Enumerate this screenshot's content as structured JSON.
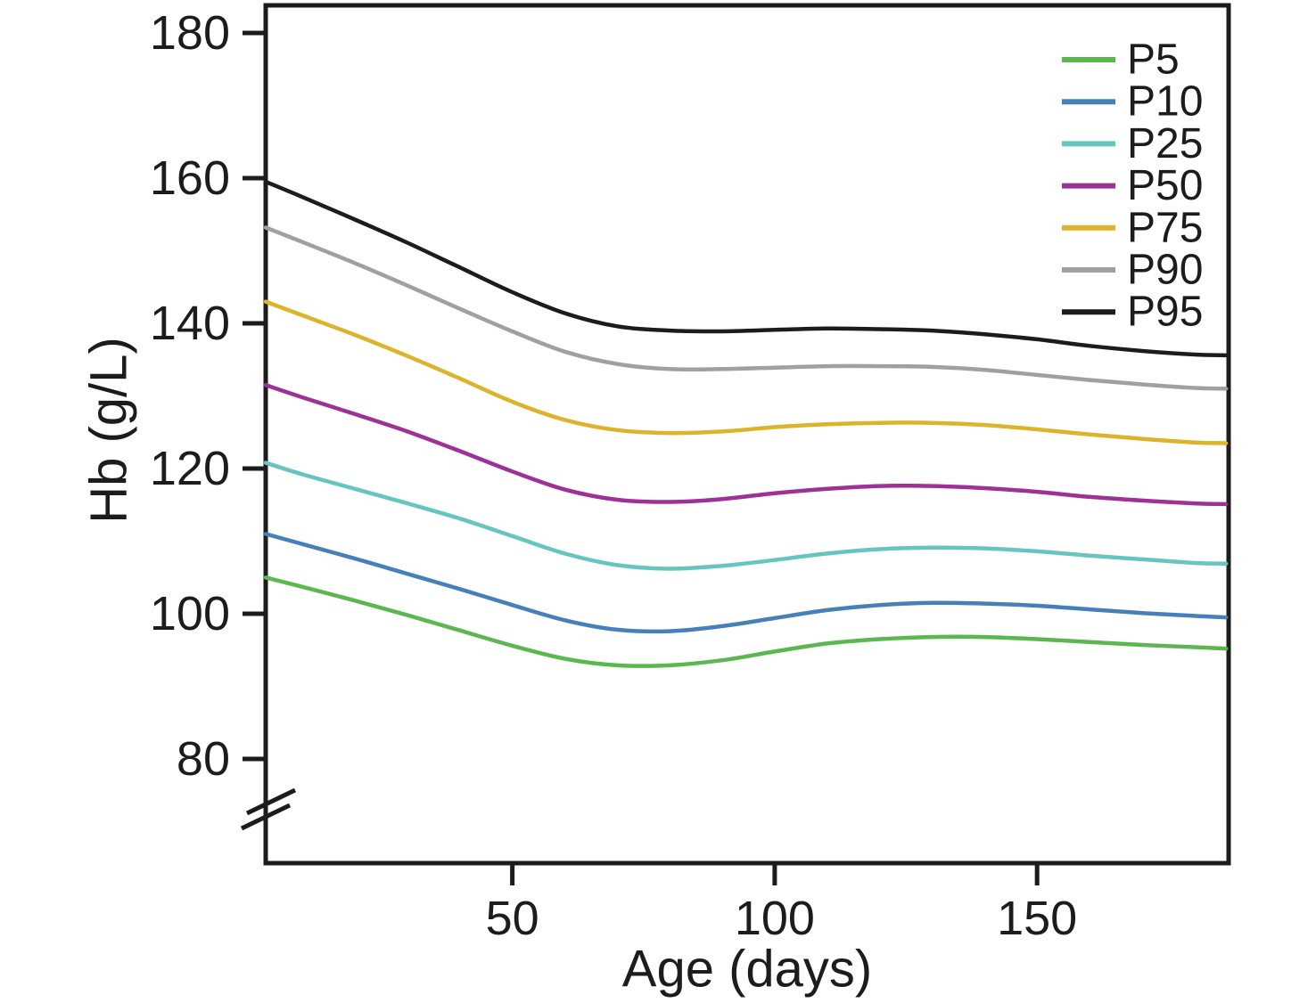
{
  "chart_data": {
    "type": "line",
    "title": "",
    "xlabel": "Age (days)",
    "ylabel": "Hb (g/L)",
    "x_ticks": [
      50,
      100,
      150
    ],
    "y_ticks": [
      180,
      160,
      140,
      120,
      100,
      80
    ],
    "xlim": [
      3,
      186.5
    ],
    "ylim_visible": [
      80,
      180
    ],
    "axis_break_bottom_left": true,
    "grid": false,
    "legend_position": "upper right",
    "legend_entries": [
      "P5",
      "P10",
      "P25",
      "P50",
      "P75",
      "P90",
      "P95"
    ],
    "x": [
      3,
      10,
      20,
      30,
      40,
      50,
      60,
      70,
      80,
      90,
      100,
      110,
      120,
      130,
      140,
      150,
      160,
      170,
      180,
      186
    ],
    "series": [
      {
        "name": "P5",
        "color": "#5cb751",
        "values": [
          105.0,
          103.7,
          101.8,
          99.8,
          97.7,
          95.6,
          93.8,
          92.9,
          92.9,
          93.6,
          94.8,
          95.9,
          96.5,
          96.8,
          96.8,
          96.5,
          96.1,
          95.7,
          95.4,
          95.2
        ]
      },
      {
        "name": "P10",
        "color": "#4680b8",
        "values": [
          111.0,
          109.6,
          107.6,
          105.5,
          103.4,
          101.2,
          99.1,
          97.8,
          97.6,
          98.3,
          99.4,
          100.5,
          101.2,
          101.5,
          101.4,
          101.1,
          100.6,
          100.1,
          99.7,
          99.5
        ]
      },
      {
        "name": "P25",
        "color": "#67c5bf",
        "values": [
          120.8,
          119.2,
          117.2,
          115.2,
          113.1,
          110.7,
          108.3,
          106.7,
          106.2,
          106.6,
          107.4,
          108.3,
          108.9,
          109.1,
          109.0,
          108.6,
          108.0,
          107.5,
          107.0,
          106.9
        ]
      },
      {
        "name": "P50",
        "color": "#9d3197",
        "values": [
          131.5,
          129.8,
          127.5,
          125.1,
          122.4,
          119.6,
          117.1,
          115.7,
          115.4,
          115.8,
          116.6,
          117.2,
          117.6,
          117.6,
          117.3,
          116.8,
          116.1,
          115.6,
          115.2,
          115.1
        ]
      },
      {
        "name": "P75",
        "color": "#ddb32b",
        "values": [
          143.0,
          141.1,
          138.4,
          135.5,
          132.4,
          129.2,
          126.7,
          125.3,
          124.9,
          125.1,
          125.7,
          126.1,
          126.3,
          126.3,
          126.0,
          125.4,
          124.7,
          124.1,
          123.6,
          123.5
        ]
      },
      {
        "name": "P90",
        "color": "#9fa0a0",
        "values": [
          153.2,
          151.2,
          148.3,
          145.2,
          142.0,
          138.9,
          136.1,
          134.4,
          133.7,
          133.7,
          133.9,
          134.1,
          134.1,
          134.0,
          133.6,
          132.9,
          132.2,
          131.6,
          131.1,
          131.0
        ]
      },
      {
        "name": "P95",
        "color": "#1c1c1c",
        "values": [
          159.5,
          157.4,
          154.3,
          151.1,
          147.7,
          144.3,
          141.4,
          139.6,
          139.0,
          138.9,
          139.1,
          139.3,
          139.2,
          139.0,
          138.5,
          137.8,
          136.9,
          136.2,
          135.7,
          135.6
        ]
      }
    ]
  },
  "colors": {
    "axis": "#1c1c1c",
    "background": "#ffffff"
  }
}
